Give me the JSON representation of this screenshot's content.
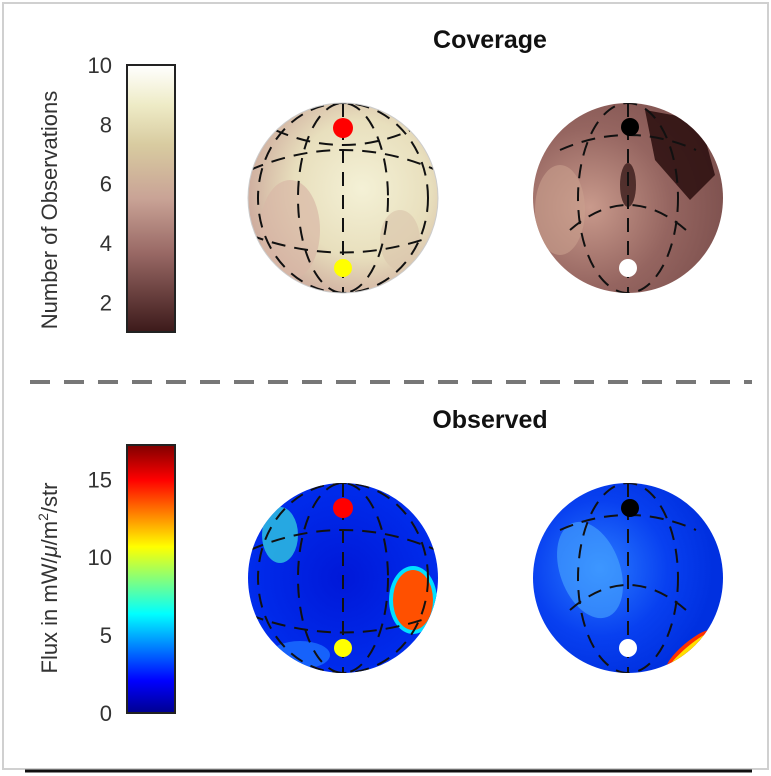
{
  "chart_data": [
    {
      "type": "heatmap",
      "title": "Coverage",
      "colorbar": {
        "label": "Number of Observations",
        "ticks": [
          2,
          4,
          6,
          8,
          10
        ],
        "range": [
          1,
          10
        ],
        "colormap": "pink",
        "colors": [
          "#3c1a1a",
          "#b78580",
          "#d8c49e",
          "#f0ecc8",
          "#ffffff"
        ]
      },
      "views": [
        "north-facing hemisphere",
        "south-facing hemisphere"
      ]
    },
    {
      "type": "heatmap",
      "title": "Observed",
      "colorbar": {
        "label": "Flux in mW/μ/m²/str",
        "label_parts": [
          "Flux in mW/",
          "μ",
          "/m",
          "2",
          "/str"
        ],
        "ticks": [
          0,
          5,
          10,
          15
        ],
        "range": [
          0,
          17.2
        ],
        "colormap": "jet",
        "colors": [
          "#00008f",
          "#0000ff",
          "#00ffff",
          "#ffff00",
          "#ff0000",
          "#800000"
        ]
      },
      "views": [
        "north-facing hemisphere",
        "south-facing hemisphere"
      ]
    }
  ],
  "markers": {
    "north_pole": "#ff0000",
    "south_pole": "#ffff00",
    "north_pole_far": "#000000",
    "south_pole_far": "#ffffff"
  }
}
